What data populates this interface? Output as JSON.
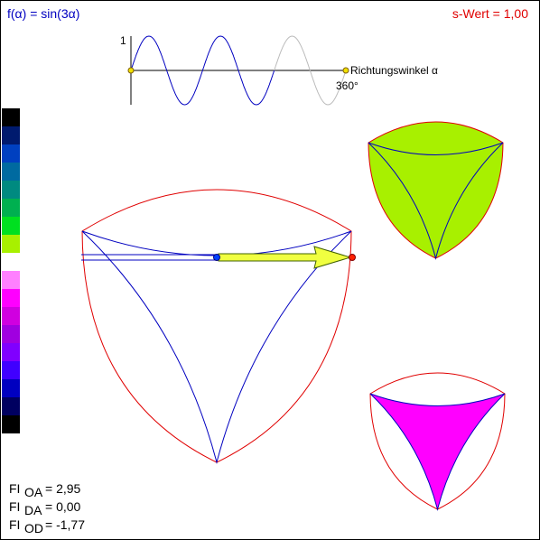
{
  "header": {
    "formula": "f(α) = sin(3α)",
    "s_value": "s-Wert = 1,00"
  },
  "graph": {
    "y_label": "1",
    "x_label": "Richtungswinkel α",
    "x_end": "360°"
  },
  "readouts": [
    {
      "symbol": "FI",
      "sub": "OA",
      "value": "= 2,95"
    },
    {
      "symbol": "FI",
      "sub": "DA",
      "value": "= 0,00"
    },
    {
      "symbol": "FI",
      "sub": "OD",
      "value": "= -1,77"
    }
  ]
}
